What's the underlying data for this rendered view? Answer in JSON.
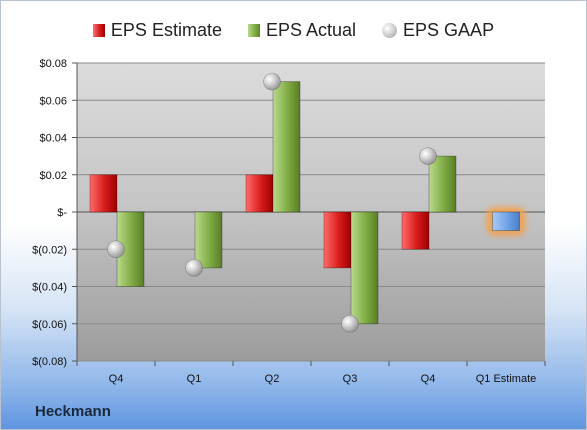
{
  "company": "Heckmann",
  "legend": {
    "estimate": "EPS Estimate",
    "actual": "EPS Actual",
    "gaap": "EPS GAAP"
  },
  "colors": {
    "estimate": "#d62020",
    "actual": "#7fab43",
    "gaap": "#b5b5b5",
    "future_estimate": "#6fa3e8",
    "future_glow": "#f5a04a"
  },
  "chart_data": {
    "type": "bar",
    "title": "",
    "xlabel": "",
    "ylabel": "",
    "categories": [
      "Q4",
      "Q1",
      "Q2",
      "Q3",
      "Q4",
      "Q1 Estimate"
    ],
    "series": [
      {
        "name": "EPS Estimate",
        "values": [
          0.02,
          null,
          0.02,
          -0.03,
          -0.02,
          -0.01
        ]
      },
      {
        "name": "EPS Actual",
        "values": [
          -0.04,
          -0.03,
          0.07,
          -0.06,
          0.03,
          null
        ]
      },
      {
        "name": "EPS GAAP",
        "values": [
          -0.02,
          -0.03,
          0.07,
          -0.06,
          0.03,
          null
        ]
      }
    ],
    "y_ticks": [
      "$0.08",
      "$0.06",
      "$0.04",
      "$0.02",
      "$-",
      "$(0.02)",
      "$(0.04)",
      "$(0.06)",
      "$(0.08)"
    ],
    "ylim": [
      -0.08,
      0.08
    ],
    "grid": true
  }
}
